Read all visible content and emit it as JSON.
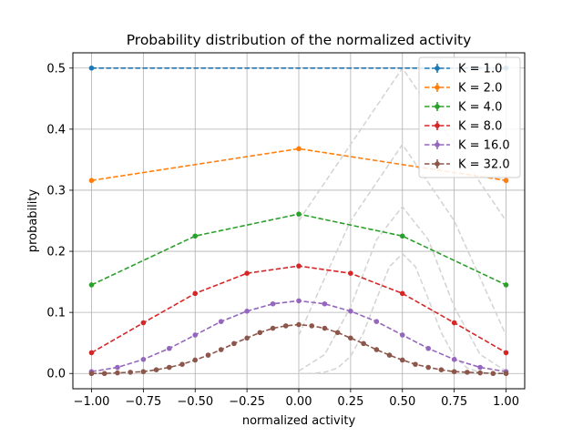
{
  "chart_data": {
    "type": "line",
    "title": "Probability distribution of the normalized activity",
    "xlabel": "normalized activity",
    "ylabel": "probability",
    "xlim": [
      -1.09,
      1.09
    ],
    "ylim": [
      -0.025,
      0.525
    ],
    "xticks": [
      "−1.00",
      "−0.75",
      "−0.50",
      "−0.25",
      "0.00",
      "0.25",
      "0.50",
      "0.75",
      "1.00"
    ],
    "xtick_values": [
      -1.0,
      -0.75,
      -0.5,
      -0.25,
      0.0,
      0.25,
      0.5,
      0.75,
      1.0
    ],
    "yticks": [
      "0.0",
      "0.1",
      "0.2",
      "0.3",
      "0.4",
      "0.5"
    ],
    "ytick_values": [
      0.0,
      0.1,
      0.2,
      0.3,
      0.4,
      0.5
    ],
    "grid": true,
    "legend_position": "top-right",
    "series": [
      {
        "name": "K = 1.0",
        "color": "#1f77b4",
        "x": [
          -1.0,
          1.0
        ],
        "y": [
          0.5,
          0.5
        ]
      },
      {
        "name": "K = 2.0",
        "color": "#ff7f0e",
        "x": [
          -1.0,
          0.0,
          1.0
        ],
        "y": [
          0.316,
          0.368,
          0.316
        ]
      },
      {
        "name": "K = 4.0",
        "color": "#2ca02c",
        "x": [
          -1.0,
          -0.5,
          0.0,
          0.5,
          1.0
        ],
        "y": [
          0.145,
          0.225,
          0.261,
          0.225,
          0.145
        ]
      },
      {
        "name": "K = 8.0",
        "color": "#d62728",
        "x": [
          -1.0,
          -0.75,
          -0.5,
          -0.25,
          0.0,
          0.25,
          0.5,
          0.75,
          1.0
        ],
        "y": [
          0.034,
          0.083,
          0.131,
          0.164,
          0.176,
          0.164,
          0.131,
          0.083,
          0.034
        ]
      },
      {
        "name": "K = 16.0",
        "color": "#9467bd",
        "x": [
          -1.0,
          -0.875,
          -0.75,
          -0.625,
          -0.5,
          -0.375,
          -0.25,
          -0.125,
          0.0,
          0.125,
          0.25,
          0.375,
          0.5,
          0.625,
          0.75,
          0.875,
          1.0
        ],
        "y": [
          0.003,
          0.01,
          0.023,
          0.041,
          0.063,
          0.085,
          0.102,
          0.114,
          0.119,
          0.114,
          0.102,
          0.085,
          0.063,
          0.041,
          0.023,
          0.01,
          0.003
        ]
      },
      {
        "name": "K = 32.0",
        "color": "#8c564b",
        "x": [
          -1.0,
          -0.9375,
          -0.875,
          -0.8125,
          -0.75,
          -0.6875,
          -0.625,
          -0.5625,
          -0.5,
          -0.4375,
          -0.375,
          -0.3125,
          -0.25,
          -0.1875,
          -0.125,
          -0.0625,
          0.0,
          0.0625,
          0.125,
          0.1875,
          0.25,
          0.3125,
          0.375,
          0.4375,
          0.5,
          0.5625,
          0.625,
          0.6875,
          0.75,
          0.8125,
          0.875,
          0.9375,
          1.0
        ],
        "y": [
          0.0,
          0.0,
          0.001,
          0.002,
          0.003,
          0.006,
          0.01,
          0.015,
          0.022,
          0.03,
          0.039,
          0.049,
          0.058,
          0.067,
          0.074,
          0.078,
          0.08,
          0.078,
          0.074,
          0.067,
          0.058,
          0.049,
          0.039,
          0.03,
          0.022,
          0.015,
          0.01,
          0.006,
          0.003,
          0.002,
          0.001,
          0.0,
          0.0
        ]
      }
    ],
    "reference_lines": [
      {
        "color": "#d3d3d3",
        "x": [
          0.0,
          0.5,
          1.0
        ],
        "y": [
          0.25,
          0.5,
          0.25
        ]
      },
      {
        "color": "#d3d3d3",
        "x": [
          0.0,
          0.25,
          0.5,
          0.75,
          1.0
        ],
        "y": [
          0.0625,
          0.25,
          0.375,
          0.25,
          0.0625
        ]
      },
      {
        "color": "#d3d3d3",
        "x": [
          0.0,
          0.125,
          0.25,
          0.375,
          0.5,
          0.625,
          0.75,
          0.875,
          1.0
        ],
        "y": [
          0.004,
          0.031,
          0.109,
          0.219,
          0.273,
          0.219,
          0.109,
          0.031,
          0.004
        ]
      },
      {
        "color": "#d3d3d3",
        "x": [
          0.0,
          0.0625,
          0.125,
          0.1875,
          0.25,
          0.3125,
          0.375,
          0.4375,
          0.5,
          0.5625,
          0.625,
          0.6875,
          0.75,
          0.8125,
          0.875,
          0.9375,
          1.0
        ],
        "y": [
          0.0,
          0.0,
          0.002,
          0.009,
          0.028,
          0.067,
          0.122,
          0.175,
          0.196,
          0.175,
          0.122,
          0.067,
          0.028,
          0.009,
          0.002,
          0.0,
          0.0
        ]
      }
    ]
  }
}
